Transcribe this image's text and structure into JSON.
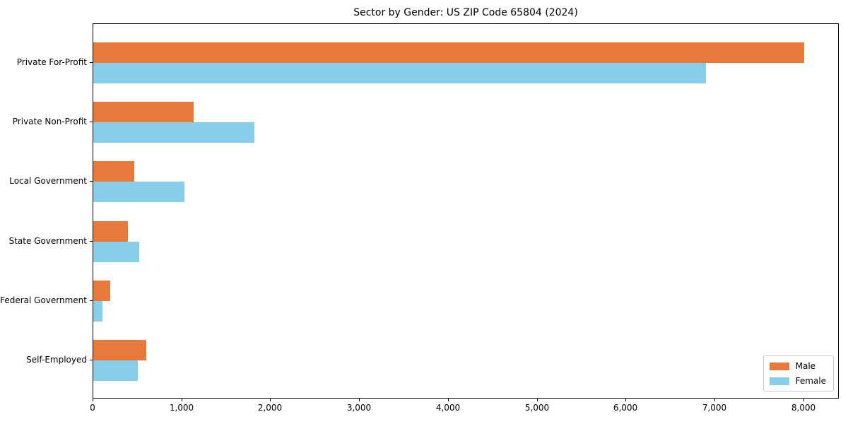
{
  "title": "Sector by Gender: US ZIP Code 65804 (2024)",
  "chart_data": {
    "type": "bar",
    "orientation": "horizontal",
    "title": "Sector by Gender: US ZIP Code 65804 (2024)",
    "categories": [
      "Private For-Profit",
      "Private Non-Profit",
      "Local Government",
      "State Government",
      "Federal Government",
      "Self-Employed"
    ],
    "series": [
      {
        "name": "Male",
        "color": "#e8793c",
        "values": [
          8000,
          1130,
          460,
          390,
          190,
          600
        ]
      },
      {
        "name": "Female",
        "color": "#87ceeb",
        "values": [
          6900,
          1810,
          1030,
          520,
          100,
          500
        ]
      }
    ],
    "xlabel": "",
    "ylabel": "",
    "xlim": [
      0,
      8400
    ],
    "x_ticks": [
      0,
      1000,
      2000,
      3000,
      4000,
      5000,
      6000,
      7000,
      8000
    ],
    "x_tick_labels": [
      "0",
      "1,000",
      "2,000",
      "3,000",
      "4,000",
      "5,000",
      "6,000",
      "7,000",
      "8,000"
    ],
    "grid": false,
    "legend": {
      "position": "lower right"
    }
  }
}
